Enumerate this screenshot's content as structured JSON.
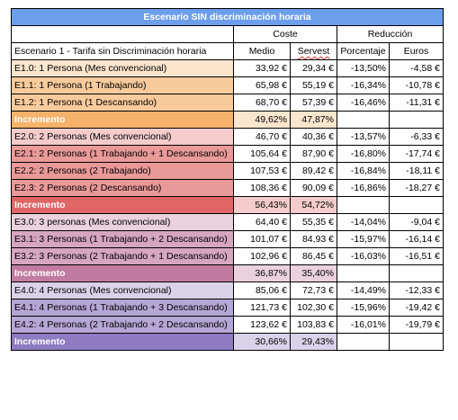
{
  "title": "Escenario SIN discriminación horaria",
  "headers": {
    "coste": "Coste",
    "reduccion": "Reducción",
    "scenario_label": "Escenario 1 - Tarifa sin Discriminación horaria",
    "medio": "Medio",
    "servest": "Servest",
    "porcentaje": "Porcentaje",
    "euros": "Euros"
  },
  "colors": {
    "title_bg": "#6d9eeb",
    "g1_row": "#fce5cd",
    "g1_alt": "#f9cb9c",
    "g1_inc": "#f6b26b",
    "g1_inc_val": "#fce5cd",
    "g2_row": "#f4cccc",
    "g2_alt": "#ea9999",
    "g2_inc": "#e06666",
    "g2_inc_val": "#f4cccc",
    "g3_row": "#ead1dc",
    "g3_alt": "#d5a6bd",
    "g3_inc": "#c27ba0",
    "g3_inc_val": "#ead1dc",
    "g4_row": "#d9d2e9",
    "g4_alt": "#b4a7d6",
    "g4_inc": "#8e7cc3",
    "g4_inc_val": "#d9d2e9"
  },
  "rows": [
    {
      "label": "E1.0: 1 Persona (Mes convencional)",
      "medio": "33,92 €",
      "servest": "29,34 €",
      "pct": "-13,50%",
      "eur": "-4,58 €",
      "group": "g1",
      "kind": "row"
    },
    {
      "label": "E1.1: 1 Persona (1 Trabajando)",
      "medio": "65,98 €",
      "servest": "55,19 €",
      "pct": "-16,34%",
      "eur": "-10,78 €",
      "group": "g1",
      "kind": "alt"
    },
    {
      "label": "E1.2: 1 Persona (1 Descansando)",
      "medio": "68,70 €",
      "servest": "57,39 €",
      "pct": "-16,46%",
      "eur": "-11,31 €",
      "group": "g1",
      "kind": "alt"
    },
    {
      "label": "Incremento",
      "medio": "49,62%",
      "servest": "47,87%",
      "pct": "",
      "eur": "",
      "group": "g1",
      "kind": "inc"
    },
    {
      "label": "E2.0: 2 Personas (Mes convencional)",
      "medio": "46,70 €",
      "servest": "40,36 €",
      "pct": "-13,57%",
      "eur": "-6,33 €",
      "group": "g2",
      "kind": "row"
    },
    {
      "label": "E2.1: 2 Personas (1 Trabajando + 1 Descansando)",
      "medio": "105,64 €",
      "servest": "87,90 €",
      "pct": "-16,80%",
      "eur": "-17,74 €",
      "group": "g2",
      "kind": "alt"
    },
    {
      "label": "E2.2: 2 Personas (2 Trabajando)",
      "medio": "107,53 €",
      "servest": "89,42 €",
      "pct": "-16,84%",
      "eur": "-18,11 €",
      "group": "g2",
      "kind": "alt"
    },
    {
      "label": "E2.3: 2 Personas (2 Descansando)",
      "medio": "108,36 €",
      "servest": "90,09 €",
      "pct": "-16,86%",
      "eur": "-18,27 €",
      "group": "g2",
      "kind": "alt"
    },
    {
      "label": "Incremento",
      "medio": "56,43%",
      "servest": "54,72%",
      "pct": "",
      "eur": "",
      "group": "g2",
      "kind": "inc"
    },
    {
      "label": "E3.0: 3 personas (Mes convencional)",
      "medio": "64,40 €",
      "servest": "55,35 €",
      "pct": "-14,04%",
      "eur": "-9,04 €",
      "group": "g3",
      "kind": "row"
    },
    {
      "label": "E3.1: 3 Personas (1 Trabajando + 2 Descansando)",
      "medio": "101,07 €",
      "servest": "84,93 €",
      "pct": "-15,97%",
      "eur": "-16,14 €",
      "group": "g3",
      "kind": "alt"
    },
    {
      "label": "E3.2: 3 Personas (2 Trabajando + 1 Descansando)",
      "medio": "102,96 €",
      "servest": "86,45 €",
      "pct": "-16,03%",
      "eur": "-16,51 €",
      "group": "g3",
      "kind": "alt"
    },
    {
      "label": "Incremento",
      "medio": "36,87%",
      "servest": "35,40%",
      "pct": "",
      "eur": "",
      "group": "g3",
      "kind": "inc"
    },
    {
      "label": "E4.0: 4 Personas (Mes convencional)",
      "medio": "85,06 €",
      "servest": "72,73 €",
      "pct": "-14,49%",
      "eur": "-12,33 €",
      "group": "g4",
      "kind": "row"
    },
    {
      "label": "E4.1: 4 Personas (1 Trabajando + 3 Descansando)",
      "medio": "121,73 €",
      "servest": "102,30 €",
      "pct": "-15,96%",
      "eur": "-19,42 €",
      "group": "g4",
      "kind": "alt"
    },
    {
      "label": "E4.2: 4 Personas (2 Trabajando + 2 Descansando)",
      "medio": "123,62 €",
      "servest": "103,83 €",
      "pct": "-16,01%",
      "eur": "-19,79 €",
      "group": "g4",
      "kind": "alt"
    },
    {
      "label": "Incremento",
      "medio": "30,66%",
      "servest": "29,43%",
      "pct": "",
      "eur": "",
      "group": "g4",
      "kind": "inc"
    }
  ]
}
